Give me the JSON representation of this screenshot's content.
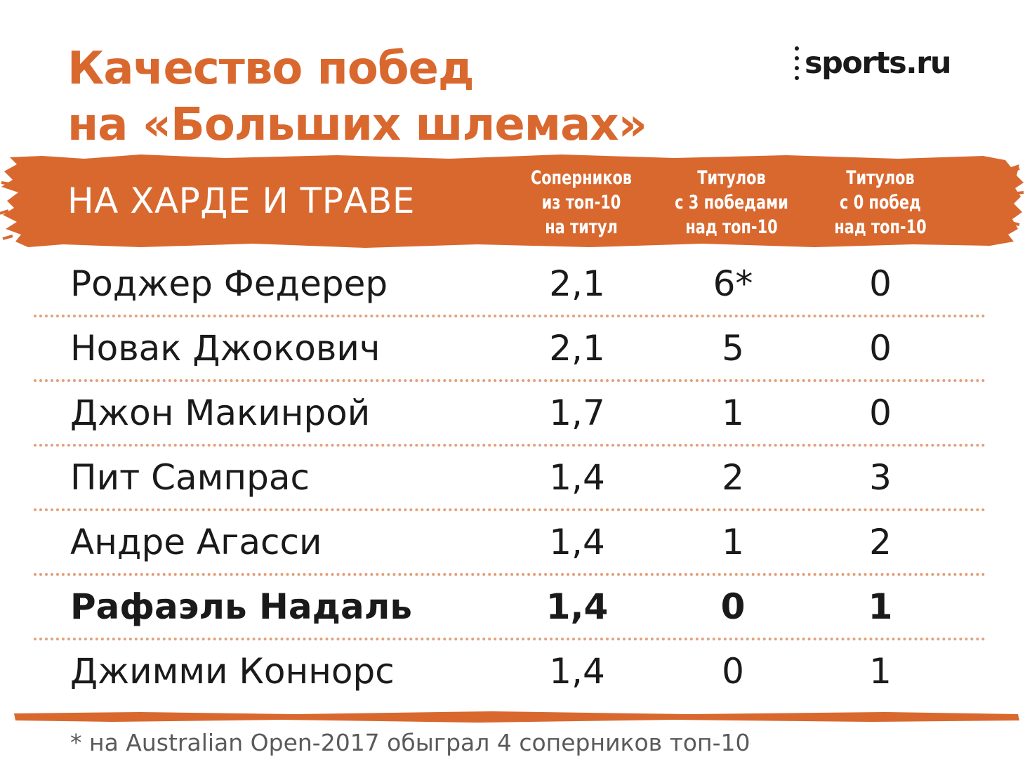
{
  "colors": {
    "accent": "#d9682f",
    "text": "#1a1a1a",
    "header_text": "#ffffff",
    "divider": "#e2a07a",
    "footnote": "#5a5a5a"
  },
  "title": {
    "line1": "Качество побед",
    "line2": "на «Больших шлемах»"
  },
  "logo": {
    "text": "sports.ru"
  },
  "banner": {
    "label": "НА ХАРДЕ И ТРАВЕ"
  },
  "chart_data": {
    "type": "table",
    "title": "Качество побед на «Больших шлемах»",
    "subtitle": "НА ХАРДЕ И ТРАВЕ",
    "columns": [
      {
        "lines": [
          "Соперников",
          "из топ-10",
          "на титул"
        ]
      },
      {
        "lines": [
          "Титулов",
          "с 3 победами",
          "над топ-10"
        ]
      },
      {
        "lines": [
          "Титулов",
          "с 0 побед",
          "над топ-10"
        ]
      }
    ],
    "rows": [
      {
        "name": "Роджер Федерер",
        "values": [
          "2,1",
          "6*",
          "0"
        ],
        "bold": false
      },
      {
        "name": "Новак Джокович",
        "values": [
          "2,1",
          "5",
          "0"
        ],
        "bold": false
      },
      {
        "name": "Джон Макинрой",
        "values": [
          "1,7",
          "1",
          "0"
        ],
        "bold": false
      },
      {
        "name": "Пит Сампрас",
        "values": [
          "1,4",
          "2",
          "3"
        ],
        "bold": false
      },
      {
        "name": "Андре Агасси",
        "values": [
          "1,4",
          "1",
          "2"
        ],
        "bold": false
      },
      {
        "name": "Рафаэль Надаль",
        "values": [
          "1,4",
          "0",
          "1"
        ],
        "bold": true
      },
      {
        "name": "Джимми Коннорс",
        "values": [
          "1,4",
          "0",
          "1"
        ],
        "bold": false
      }
    ],
    "footnote": "* на Australian Open-2017 обыграл 4 соперников топ-10"
  }
}
